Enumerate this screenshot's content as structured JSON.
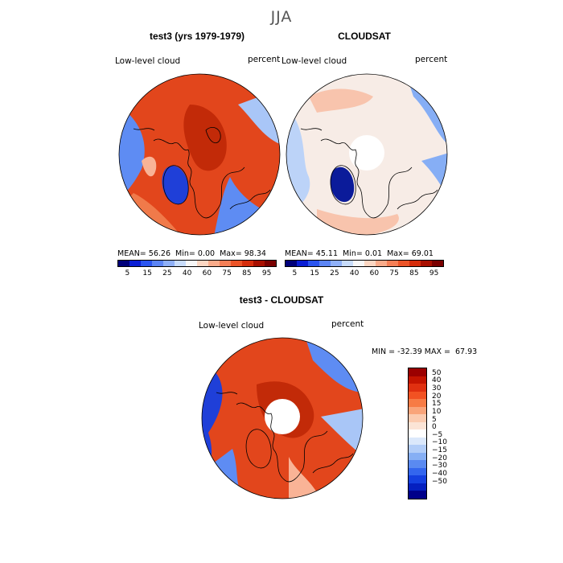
{
  "season": "JJA",
  "panels": [
    {
      "title": "test3 (yrs 1979-1979)",
      "variable": "Low-level cloud",
      "units": "percent",
      "stats": {
        "mean_label": "MEAN=",
        "mean": "56.26",
        "min_label": "Min=",
        "min": "0.00",
        "max_label": "Max=",
        "max": "98.34"
      }
    },
    {
      "title": "CLOUDSAT",
      "variable": "Low-level cloud",
      "units": "percent",
      "stats": {
        "mean_label": "MEAN=",
        "mean": "45.11",
        "min_label": "Min=",
        "min": "0.01",
        "max_label": "Max=",
        "max": "69.01"
      }
    }
  ],
  "abs_colorbar": {
    "colors": [
      "#00007a",
      "#0a1ed4",
      "#2b55f0",
      "#5c85f5",
      "#8fb0f7",
      "#c8dcfb",
      "#f7f7f7",
      "#fcd6c2",
      "#f9ab8a",
      "#f47f56",
      "#ec5428",
      "#d62d0c",
      "#a80f00",
      "#7a0000"
    ],
    "tick_labels": [
      "5",
      "15",
      "25",
      "40",
      "60",
      "75",
      "85",
      "95"
    ]
  },
  "diff_panel": {
    "title": "test3 - CLOUDSAT",
    "variable": "Low-level cloud",
    "units": "percent",
    "minmax": {
      "min_label": "MIN =",
      "min": "-32.39",
      "max_label": "MAX =",
      "max": "67.93"
    }
  },
  "diff_colorbar": {
    "colors": [
      "#9b0000",
      "#c41400",
      "#e03010",
      "#f25222",
      "#f77b45",
      "#f9a47a",
      "#fbcbb0",
      "#fbe4d6",
      "#ffffff",
      "#dbe8fb",
      "#b2cdf8",
      "#86aff4",
      "#5a8af1",
      "#3366ee",
      "#1440e0",
      "#0520c0",
      "#00008a"
    ],
    "tick_labels": [
      "50",
      "40",
      "30",
      "20",
      "15",
      "10",
      "5",
      "0",
      "−5",
      "−10",
      "−15",
      "−20",
      "−30",
      "−40",
      "−50"
    ]
  },
  "maps": {
    "colors": {
      "model_base": "#e2461c",
      "model_dark": "#c22a08",
      "model_mid": "#f07a4a",
      "model_light": "#f9b396",
      "blue_mid": "#5e8cf3",
      "blue_light": "#a9c6f7",
      "blue_dark": "#1f3fd8",
      "navy": "#0b1b9a",
      "obs_base": "#f7ece6",
      "obs_pink": "#f8c4ad",
      "obs_blue": "#bcd3f8",
      "obs_blue2": "#86aef5",
      "white": "#ffffff"
    }
  }
}
